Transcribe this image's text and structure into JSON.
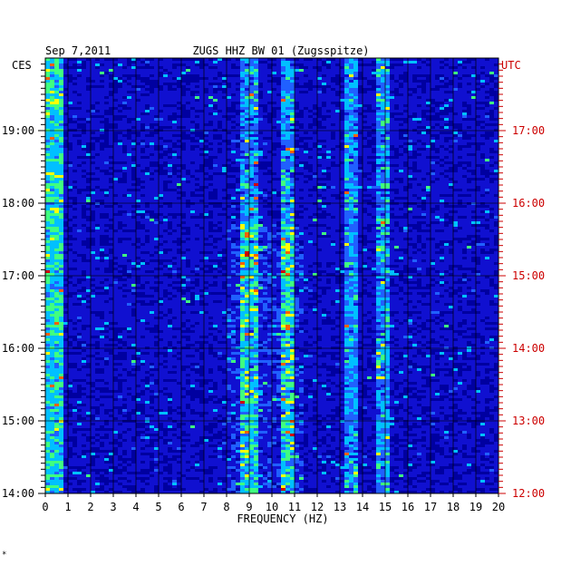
{
  "chart_data": {
    "type": "heatmap",
    "date": "Sep 7,2011",
    "title": "ZUGS HHZ BW 01 (Zugsspitze)",
    "left_timezone": "CES",
    "right_timezone": "UTC",
    "xlabel": "FREQUENCY (HZ)",
    "x_ticks": [
      0,
      1,
      2,
      3,
      4,
      5,
      6,
      7,
      8,
      9,
      10,
      11,
      12,
      13,
      14,
      15,
      16,
      17,
      18,
      19,
      20
    ],
    "xlim": [
      0,
      20
    ],
    "left_time_ticks": [
      "19:00",
      "18:00",
      "17:00",
      "16:00",
      "15:00",
      "14:00"
    ],
    "right_time_ticks": [
      "UTC",
      "17:00",
      "16:00",
      "15:00",
      "14:00",
      "13:00",
      "12:00"
    ],
    "time_range_local": [
      "14:00",
      "19:45"
    ],
    "colorscale": [
      "#0000a0",
      "#1010d0",
      "#2060ff",
      "#00c0ff",
      "#40ff80",
      "#ffff00",
      "#ff6000",
      "#d00000"
    ],
    "notable_bands_hz": [
      0.3,
      9,
      10.7,
      13.5,
      14.9
    ],
    "footnote": "*"
  }
}
